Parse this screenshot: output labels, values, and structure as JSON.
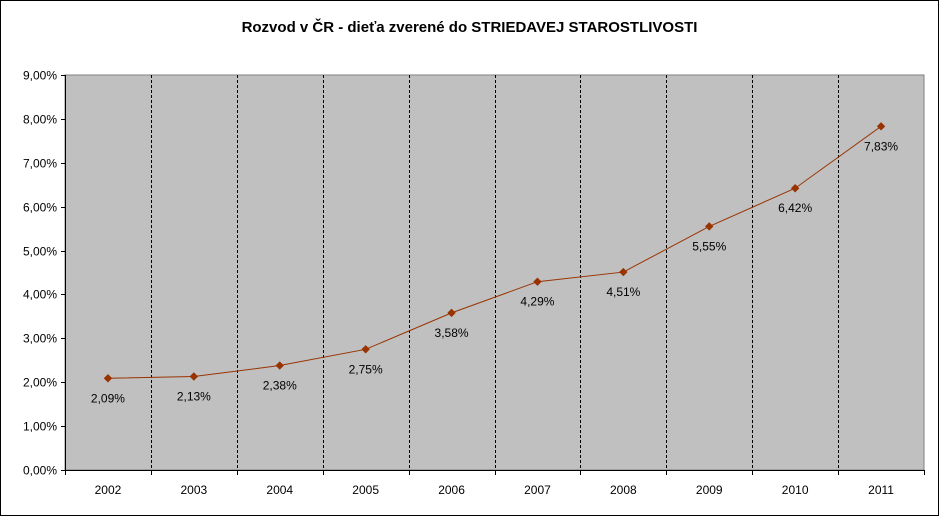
{
  "chart_data": {
    "type": "line",
    "title": "Rozvod v ČR - dieťa zverené do STRIEDAVEJ STAROSTLIVOSTI",
    "xlabel": "",
    "ylabel": "",
    "categories": [
      "2002",
      "2003",
      "2004",
      "2005",
      "2006",
      "2007",
      "2008",
      "2009",
      "2010",
      "2011"
    ],
    "series": [
      {
        "values": [
          2.09,
          2.13,
          2.38,
          2.75,
          3.58,
          4.29,
          4.51,
          5.55,
          6.42,
          7.83
        ],
        "data_labels": [
          "2,09%",
          "2,13%",
          "2,38%",
          "2,75%",
          "3,58%",
          "4,29%",
          "4,51%",
          "5,55%",
          "6,42%",
          "7,83%"
        ],
        "color": "#993300"
      }
    ],
    "ylim": [
      0,
      9
    ],
    "y_ticks": [
      {
        "value": 0,
        "label": "0,00%"
      },
      {
        "value": 1,
        "label": "1,00%"
      },
      {
        "value": 2,
        "label": "2,00%"
      },
      {
        "value": 3,
        "label": "3,00%"
      },
      {
        "value": 4,
        "label": "4,00%"
      },
      {
        "value": 5,
        "label": "5,00%"
      },
      {
        "value": 6,
        "label": "6,00%"
      },
      {
        "value": 7,
        "label": "7,00%"
      },
      {
        "value": 8,
        "label": "8,00%"
      },
      {
        "value": 9,
        "label": "9,00%"
      }
    ],
    "grid": "vertical dashed lines between categories",
    "legend": "none",
    "plot_background": "#c0c0c0"
  }
}
